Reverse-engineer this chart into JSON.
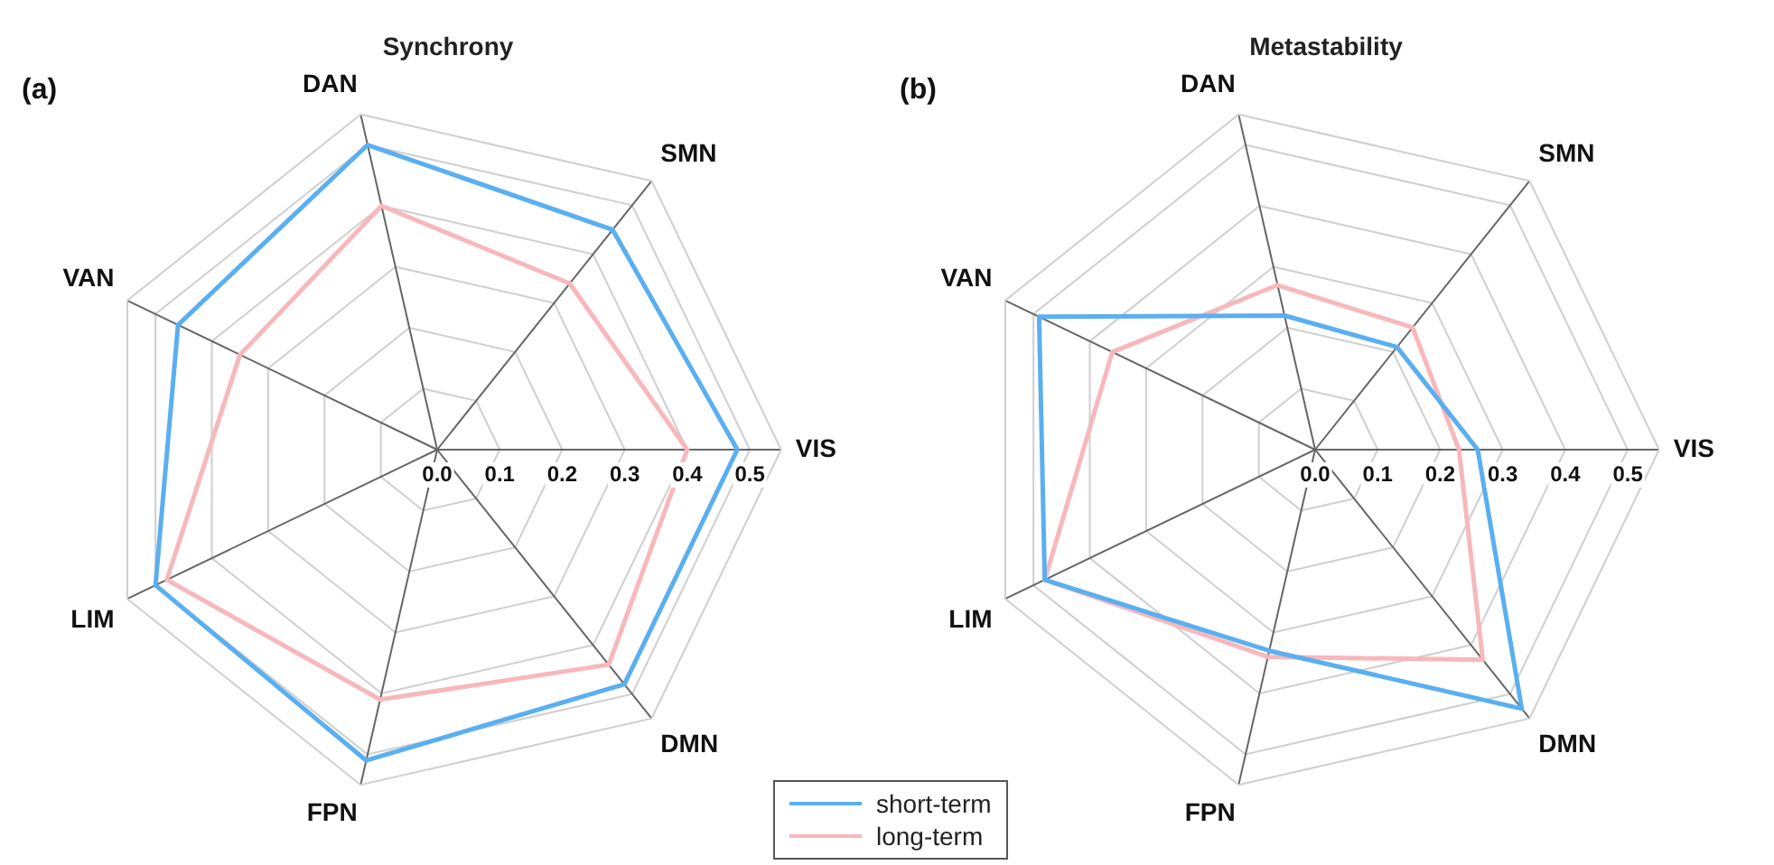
{
  "chart_data": [
    {
      "type": "radar",
      "title": "Synchrony",
      "annotations": [
        "(a)"
      ],
      "categories": [
        "DAN",
        "SMN",
        "VIS",
        "DMN",
        "FPN",
        "LIM",
        "VAN"
      ],
      "ylim": [
        0,
        0.55
      ],
      "yticks": [
        {
          "value": 0,
          "label": "0.0"
        },
        0.1,
        0.2,
        0.3,
        0.4,
        0.5
      ],
      "grid": true,
      "marker": "none",
      "legend": "bottom right",
      "series": [
        {
          "name": "short-term",
          "color": "#5aaff0",
          "values": [
            0.5,
            0.45,
            0.48,
            0.48,
            0.51,
            0.5,
            0.46
          ]
        },
        {
          "name": "long-term",
          "color": "#f7b8bc",
          "values": [
            0.4,
            0.34,
            0.4,
            0.44,
            0.41,
            0.48,
            0.35
          ]
        }
      ]
    },
    {
      "type": "radar",
      "title": "Metastability",
      "annotations": [
        "(b)"
      ],
      "categories": [
        "DAN",
        "SMN",
        "VIS",
        "DMN",
        "FPN",
        "LIM",
        "VAN"
      ],
      "ylim": [
        0,
        0.55
      ],
      "yticks": [
        {
          "value": 0,
          "label": "0.0"
        },
        0.1,
        0.2,
        0.3,
        0.4,
        0.5
      ],
      "grid": true,
      "marker": "none",
      "series": [
        {
          "name": "short-term",
          "color": "#5aaff0",
          "values": [
            0.22,
            0.21,
            0.26,
            0.53,
            0.33,
            0.48,
            0.49
          ]
        },
        {
          "name": "long-term",
          "color": "#f7b8bc",
          "values": [
            0.27,
            0.25,
            0.23,
            0.43,
            0.34,
            0.48,
            0.36
          ]
        }
      ]
    }
  ]
}
